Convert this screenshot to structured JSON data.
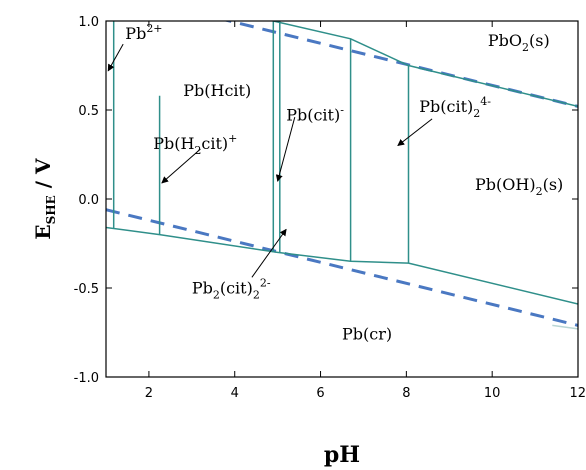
{
  "chart_data": {
    "type": "line",
    "xlabel": "pH",
    "ylabel": {
      "main": "E",
      "sub": "SHE",
      "rest": " / V"
    },
    "xlim": [
      1,
      12
    ],
    "ylim": [
      -1.0,
      1.0
    ],
    "x_ticks": [
      {
        "v": 2,
        "label": "2"
      },
      {
        "v": 4,
        "label": "4"
      },
      {
        "v": 6,
        "label": "6"
      },
      {
        "v": 8,
        "label": "8"
      },
      {
        "v": 10,
        "label": "10"
      },
      {
        "v": 12,
        "label": "12"
      }
    ],
    "y_ticks": [
      {
        "v": 1.0,
        "label": "1.0"
      },
      {
        "v": 0.5,
        "label": "0.5"
      },
      {
        "v": 0.0,
        "label": "0.0"
      },
      {
        "v": -0.5,
        "label": "-0.5"
      },
      {
        "v": -1.0,
        "label": "-1.0"
      }
    ],
    "colors": {
      "boundary": "#2f8f8a",
      "water": "#4a78c2"
    },
    "water_lines": [
      {
        "points": [
          [
            1.0,
            -0.06
          ],
          [
            12.0,
            -0.71
          ]
        ],
        "style": "dashed"
      },
      {
        "points": [
          [
            1.0,
            1.17
          ],
          [
            12.0,
            0.52
          ]
        ],
        "style": "dashed"
      }
    ],
    "boundaries": [
      {
        "points": [
          [
            1.0,
            -0.16
          ],
          [
            2.25,
            -0.2
          ],
          [
            5.0,
            -0.3
          ],
          [
            6.7,
            -0.35
          ],
          [
            8.05,
            -0.36
          ],
          [
            12.0,
            -0.59
          ]
        ]
      },
      {
        "points": [
          [
            4.9,
            1.0
          ],
          [
            6.7,
            0.9
          ],
          [
            8.05,
            0.75
          ],
          [
            12.0,
            0.52
          ]
        ]
      },
      {
        "points": [
          [
            1.18,
            1.0
          ],
          [
            1.18,
            -0.165
          ]
        ]
      },
      {
        "points": [
          [
            2.25,
            0.58
          ],
          [
            2.25,
            -0.2
          ]
        ]
      },
      {
        "points": [
          [
            4.9,
            1.0
          ],
          [
            4.9,
            -0.3
          ]
        ]
      },
      {
        "points": [
          [
            5.05,
            1.0
          ],
          [
            5.05,
            -0.3
          ]
        ]
      },
      {
        "points": [
          [
            6.7,
            0.9
          ],
          [
            6.7,
            -0.35
          ]
        ]
      },
      {
        "points": [
          [
            8.05,
            0.75
          ],
          [
            8.05,
            -0.36
          ]
        ]
      },
      {
        "points": [
          [
            11.4,
            -0.71
          ],
          [
            12.0,
            -0.73
          ]
        ],
        "light": true
      }
    ],
    "labels": [
      {
        "id": "pb2plus",
        "base": "Pb",
        "sup": "2+",
        "x": 1.45,
        "y": 0.9
      },
      {
        "id": "pbhcit",
        "text": "Pb(Hcit)",
        "x": 2.8,
        "y": 0.58
      },
      {
        "id": "pbh2cit",
        "base": "Pb(H",
        "sub": "2",
        "after": "cit)",
        "sup": "+",
        "x": 2.1,
        "y": 0.28
      },
      {
        "id": "pbcit",
        "base": "Pb(cit)",
        "sup": "-",
        "x": 5.2,
        "y": 0.44
      },
      {
        "id": "pbcit24",
        "base": "Pb(cit)",
        "sub": "2",
        "sup": "4-",
        "x": 8.3,
        "y": 0.49
      },
      {
        "id": "pbo2",
        "base": "PbO",
        "sub": "2",
        "after": "(s)",
        "x": 9.9,
        "y": 0.86
      },
      {
        "id": "pboh2",
        "base": "Pb(OH)",
        "sub": "2",
        "after": "(s)",
        "x": 9.6,
        "y": 0.05
      },
      {
        "id": "pb2cit2",
        "base": "Pb",
        "sub": "2",
        "after": "(cit)",
        "sub2": "2",
        "sup": "2-",
        "x": 3.0,
        "y": -0.53
      },
      {
        "id": "pbcr",
        "text": "Pb(cr)",
        "x": 6.5,
        "y": -0.79
      }
    ],
    "arrows": [
      {
        "from": [
          1.4,
          0.87
        ],
        "to": [
          1.05,
          0.72
        ]
      },
      {
        "from": [
          3.2,
          0.28
        ],
        "to": [
          2.3,
          0.09
        ]
      },
      {
        "from": [
          5.4,
          0.46
        ],
        "to": [
          5.0,
          0.1
        ]
      },
      {
        "from": [
          8.6,
          0.45
        ],
        "to": [
          7.8,
          0.3
        ]
      },
      {
        "from": [
          4.4,
          -0.44
        ],
        "to": [
          5.2,
          -0.17
        ]
      }
    ]
  }
}
